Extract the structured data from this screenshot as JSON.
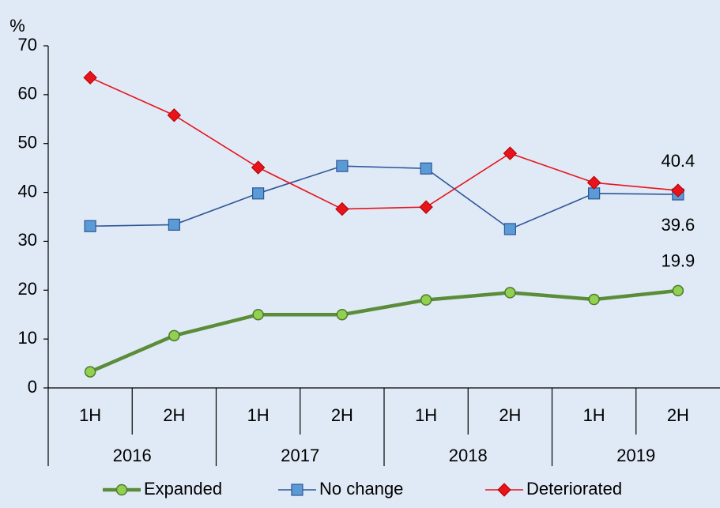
{
  "chart_data": {
    "type": "line",
    "y_axis_label": "%",
    "categories": [
      "1H",
      "2H",
      "1H",
      "2H",
      "1H",
      "2H",
      "1H",
      "2H"
    ],
    "category_groups": [
      "2016",
      "2017",
      "2018",
      "2019"
    ],
    "series": [
      {
        "name": "Expanded",
        "color": "#5b8c3a",
        "marker": "circle",
        "values": [
          3.3,
          10.7,
          15,
          15,
          18,
          19.5,
          18.1,
          19.9
        ]
      },
      {
        "name": "No change",
        "color": "#2f5597",
        "marker": "square",
        "values": [
          33.1,
          33.4,
          39.8,
          45.4,
          44.9,
          32.5,
          39.8,
          39.6
        ]
      },
      {
        "name": "Deteriorated",
        "color": "#e8131b",
        "marker": "diamond",
        "values": [
          63.5,
          55.8,
          45.1,
          36.6,
          37,
          48,
          42,
          40.4
        ]
      }
    ],
    "ylim": [
      0,
      70
    ],
    "yticks": [
      0,
      10,
      20,
      30,
      40,
      50,
      60,
      70
    ],
    "grid": false,
    "legend": "bottom"
  }
}
